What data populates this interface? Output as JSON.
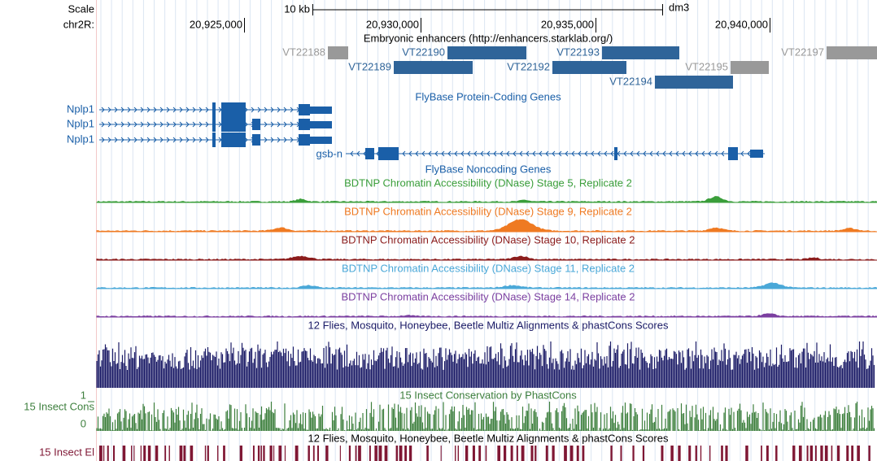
{
  "ruler": {
    "scale_label": "Scale",
    "span_label": "10 kb",
    "assembly": "dm3",
    "chrom": "chr2R:",
    "ticks": [
      "20,925,000",
      "20,930,000",
      "20,935,000",
      "20,940,000"
    ]
  },
  "enhancers": {
    "title": "Embryonic enhancers (http://enhancers.starklab.org/)",
    "items": [
      {
        "name": "VT22188",
        "color": "#999999"
      },
      {
        "name": "VT22190",
        "color": "#2f6499"
      },
      {
        "name": "VT22193",
        "color": "#2f6499"
      },
      {
        "name": "VT22197",
        "color": "#999999"
      },
      {
        "name": "VT22189",
        "color": "#2f6499"
      },
      {
        "name": "VT22192",
        "color": "#2f6499"
      },
      {
        "name": "VT22195",
        "color": "#999999"
      },
      {
        "name": "VT22194",
        "color": "#2f6499"
      }
    ]
  },
  "coding_genes": {
    "title": "FlyBase Protein-Coding Genes",
    "transcripts": [
      "Nplp1",
      "Nplp1",
      "Nplp1",
      "gsb-n"
    ]
  },
  "noncoding_genes": {
    "title": "FlyBase Noncoding Genes"
  },
  "dnase": [
    {
      "title": "BDTNP Chromatin Accessibility (DNase) Stage 5, Replicate 2",
      "color": "#3a9e3a"
    },
    {
      "title": "BDTNP Chromatin Accessibility (DNase) Stage 9, Replicate 2",
      "color": "#ef7a22"
    },
    {
      "title": "BDTNP Chromatin Accessibility (DNase) Stage 10, Replicate 2",
      "color": "#8b1c1c"
    },
    {
      "title": "BDTNP Chromatin Accessibility (DNase) Stage 11, Replicate 2",
      "color": "#4aa8d8"
    },
    {
      "title": "BDTNP Chromatin Accessibility (DNase) Stage 14, Replicate 2",
      "color": "#7b3fa0"
    }
  ],
  "multiz": {
    "title": "12 Flies, Mosquito, Honeybee, Beetle Multiz Alignments & phastCons Scores",
    "color": "#1a1a66"
  },
  "phastcons": {
    "title": "15 Insect Conservation by PhastCons",
    "label": "15 Insect Cons",
    "top": "1",
    "bottom": "0",
    "color": "#3d7f3d"
  },
  "elements": {
    "title": "12 Flies, Mosquito, Honeybee, Beetle Multiz Alignments & phastCons Scores",
    "label": "15 Insect El",
    "color": "#7f1734"
  }
}
